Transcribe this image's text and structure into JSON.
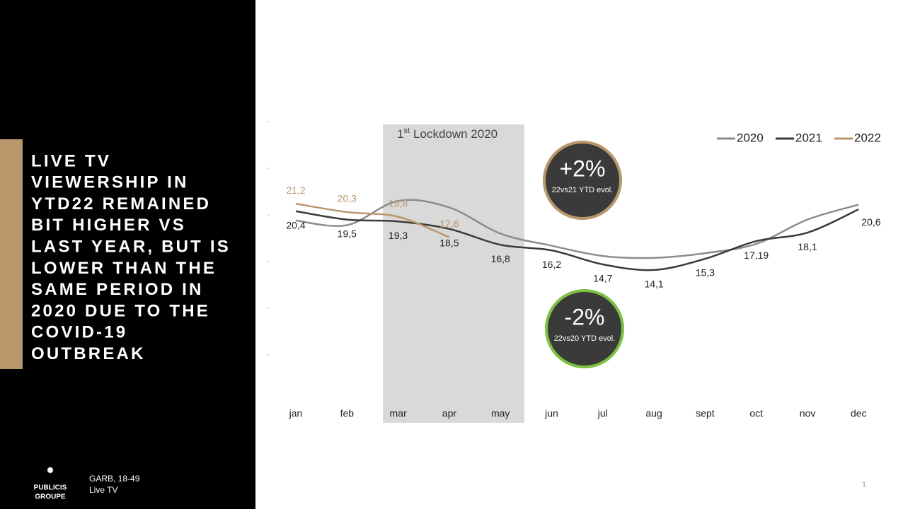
{
  "sidebar": {
    "title_lines": [
      "LIVE TV",
      "VIEWERSHIP IN",
      "YTD22 REMAINED",
      "BIT HIGHER VS",
      "LAST YEAR, BUT IS",
      "LOWER THAN THE",
      "SAME PERIOD IN",
      "2020 DUE TO THE",
      "COVID-19",
      "OUTBREAK"
    ],
    "logo_lines": [
      "PUBLICIS",
      "GROUPE"
    ],
    "source_lines": [
      "GARB, 18-49",
      "Live TV"
    ]
  },
  "page_number": "1",
  "chart_data": {
    "type": "line",
    "categories": [
      "jan",
      "feb",
      "mar",
      "apr",
      "may",
      "jun",
      "jul",
      "aug",
      "sept",
      "oct",
      "nov",
      "dec"
    ],
    "ylim": [
      0,
      30
    ],
    "yticks": [
      5,
      10,
      15,
      20,
      25,
      30
    ],
    "legend": "top-right",
    "series": [
      {
        "name": "2020",
        "color": "#8c8c8c",
        "values": [
          19.4,
          18.9,
          21.5,
          20.8,
          18.0,
          16.7,
          15.6,
          15.4,
          15.9,
          16.9,
          19.5,
          21.1
        ]
      },
      {
        "name": "2021",
        "color": "#3a3a3a",
        "values": [
          20.4,
          19.5,
          19.3,
          18.5,
          16.8,
          16.2,
          14.7,
          14.1,
          15.3,
          17.19,
          18.1,
          20.6
        ],
        "value_labels": [
          "20,4",
          "19,5",
          "19,3",
          "18,5",
          "16,8",
          "16,2",
          "14,7",
          "14,1",
          "15,3",
          "17,19",
          "18,1",
          "20,6"
        ]
      },
      {
        "name": "2022",
        "color": "#b8976a",
        "values": [
          21.2,
          20.3,
          19.8,
          17.6,
          null,
          null,
          null,
          null,
          null,
          null,
          null,
          null
        ],
        "value_labels": [
          "21,2",
          "20,3",
          "19,8",
          "17,6",
          null,
          null,
          null,
          null,
          null,
          null,
          null,
          null
        ]
      }
    ],
    "shaded_region": {
      "number": "1",
      "superscript": "st",
      "text": "Lockdown 2020"
    },
    "callouts": [
      {
        "value": 2,
        "label": "+2%",
        "caption": "22vs21 YTD evol.",
        "color": "#b8976a"
      },
      {
        "value": -2,
        "label": "-2%",
        "caption": "22vs20 YTD evol.",
        "color": "#7dc142"
      }
    ]
  }
}
